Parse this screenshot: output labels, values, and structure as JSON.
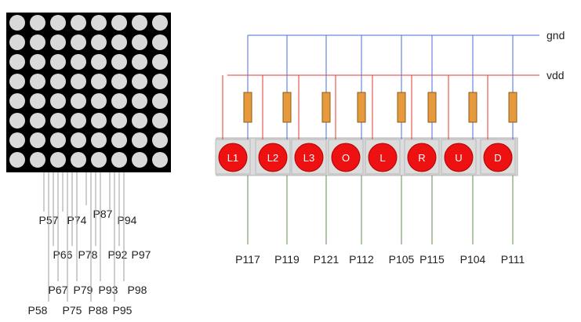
{
  "matrix": {
    "rows": 8,
    "cols": 8
  },
  "rails": {
    "gnd": "gnd",
    "vdd": "vdd"
  },
  "colors": {
    "matrix_bg": "#000000",
    "led_off": "#d9d9d9",
    "pin_line": "#9e9e9e",
    "gnd_line": "#4a6fd0",
    "vdd_line": "#e53935",
    "resistor": "#e69a3c",
    "button_bg": "#dcdcdc",
    "button_led": "#ee1111",
    "signal_line": "#5f8f4e"
  },
  "matrix_pins": [
    "P57",
    "P58",
    "P66",
    "P67",
    "P74",
    "P75",
    "P78",
    "P79",
    "P87",
    "P88",
    "P92",
    "P93",
    "P94",
    "P95",
    "P97",
    "P98"
  ],
  "buttons": [
    {
      "label": "L1",
      "pin": "P117"
    },
    {
      "label": "L2",
      "pin": "P119"
    },
    {
      "label": "L3",
      "pin": "P121"
    },
    {
      "label": "O",
      "pin": "P112"
    },
    {
      "label": "L",
      "pin": "P105"
    },
    {
      "label": "R",
      "pin": "P115"
    },
    {
      "label": "U",
      "pin": "P104"
    },
    {
      "label": "D",
      "pin": "P111"
    }
  ]
}
